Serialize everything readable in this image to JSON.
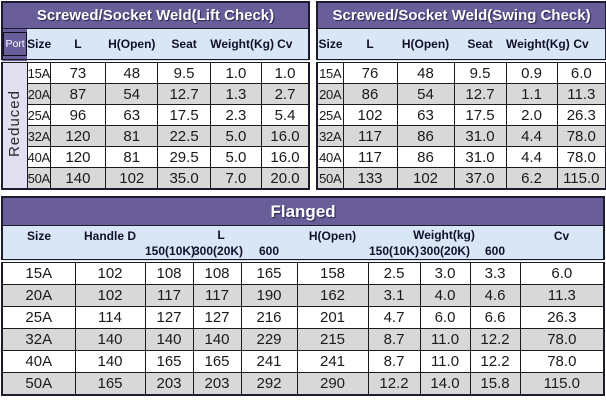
{
  "colors": {
    "title_purple": "#6a5e9a",
    "header_blue": "#d9e6f5",
    "side_lavender": "#e2dff0",
    "row_alt_gray": "#d8d8d8",
    "border_dark": "#1c1c2e"
  },
  "tables": {
    "lift": {
      "title": "Screwed/Socket Weld(Lift Check)",
      "port_label": "Port",
      "side_label": "Reduced",
      "columns": [
        "Size",
        "L",
        "H(Open)",
        "Seat",
        "Weight(Kg)",
        "Cv"
      ],
      "rows": [
        [
          "15A",
          "73",
          "48",
          "9.5",
          "1.0",
          "1.0"
        ],
        [
          "20A",
          "87",
          "54",
          "12.7",
          "1.3",
          "2.7"
        ],
        [
          "25A",
          "96",
          "63",
          "17.5",
          "2.3",
          "5.4"
        ],
        [
          "32A",
          "120",
          "81",
          "22.5",
          "5.0",
          "16.0"
        ],
        [
          "40A",
          "120",
          "81",
          "29.5",
          "5.0",
          "16.0"
        ],
        [
          "50A",
          "140",
          "102",
          "35.0",
          "7.0",
          "20.0"
        ]
      ]
    },
    "swing": {
      "title": "Screwed/Socket Weld(Swing Check)",
      "columns": [
        "Size",
        "L",
        "H(Open)",
        "Seat",
        "Weight(Kg)",
        "Cv"
      ],
      "rows": [
        [
          "15A",
          "76",
          "48",
          "9.5",
          "0.9",
          "6.0"
        ],
        [
          "20A",
          "86",
          "54",
          "12.7",
          "1.1",
          "11.3"
        ],
        [
          "25A",
          "102",
          "63",
          "17.5",
          "2.0",
          "26.3"
        ],
        [
          "32A",
          "117",
          "86",
          "31.0",
          "4.4",
          "78.0"
        ],
        [
          "40A",
          "117",
          "86",
          "31.0",
          "4.4",
          "78.0"
        ],
        [
          "50A",
          "133",
          "102",
          "37.0",
          "6.2",
          "115.0"
        ]
      ]
    },
    "flanged": {
      "title": "Flanged",
      "groups": [
        {
          "label": "Size"
        },
        {
          "label": "Handle D"
        },
        {
          "label": "L"
        },
        {
          "label": "H(Open)"
        },
        {
          "label": "Weight(kg)"
        },
        {
          "label": "Cv"
        }
      ],
      "sub_headers": [
        "150(10K)",
        "300(20K)",
        "600",
        "150(10K)",
        "300(20K)",
        "600"
      ],
      "rows": [
        [
          "15A",
          "102",
          "108",
          "108",
          "165",
          "158",
          "2.5",
          "3.0",
          "3.3",
          "6.0"
        ],
        [
          "20A",
          "102",
          "117",
          "117",
          "190",
          "162",
          "3.1",
          "4.0",
          "4.6",
          "11.3"
        ],
        [
          "25A",
          "114",
          "127",
          "127",
          "216",
          "201",
          "4.7",
          "6.0",
          "6.6",
          "26.3"
        ],
        [
          "32A",
          "140",
          "140",
          "140",
          "229",
          "215",
          "8.7",
          "11.0",
          "12.2",
          "78.0"
        ],
        [
          "40A",
          "140",
          "165",
          "165",
          "241",
          "241",
          "8.7",
          "11.0",
          "12.2",
          "78.0"
        ],
        [
          "50A",
          "165",
          "203",
          "203",
          "292",
          "290",
          "12.2",
          "14.0",
          "15.8",
          "115.0"
        ]
      ]
    }
  }
}
